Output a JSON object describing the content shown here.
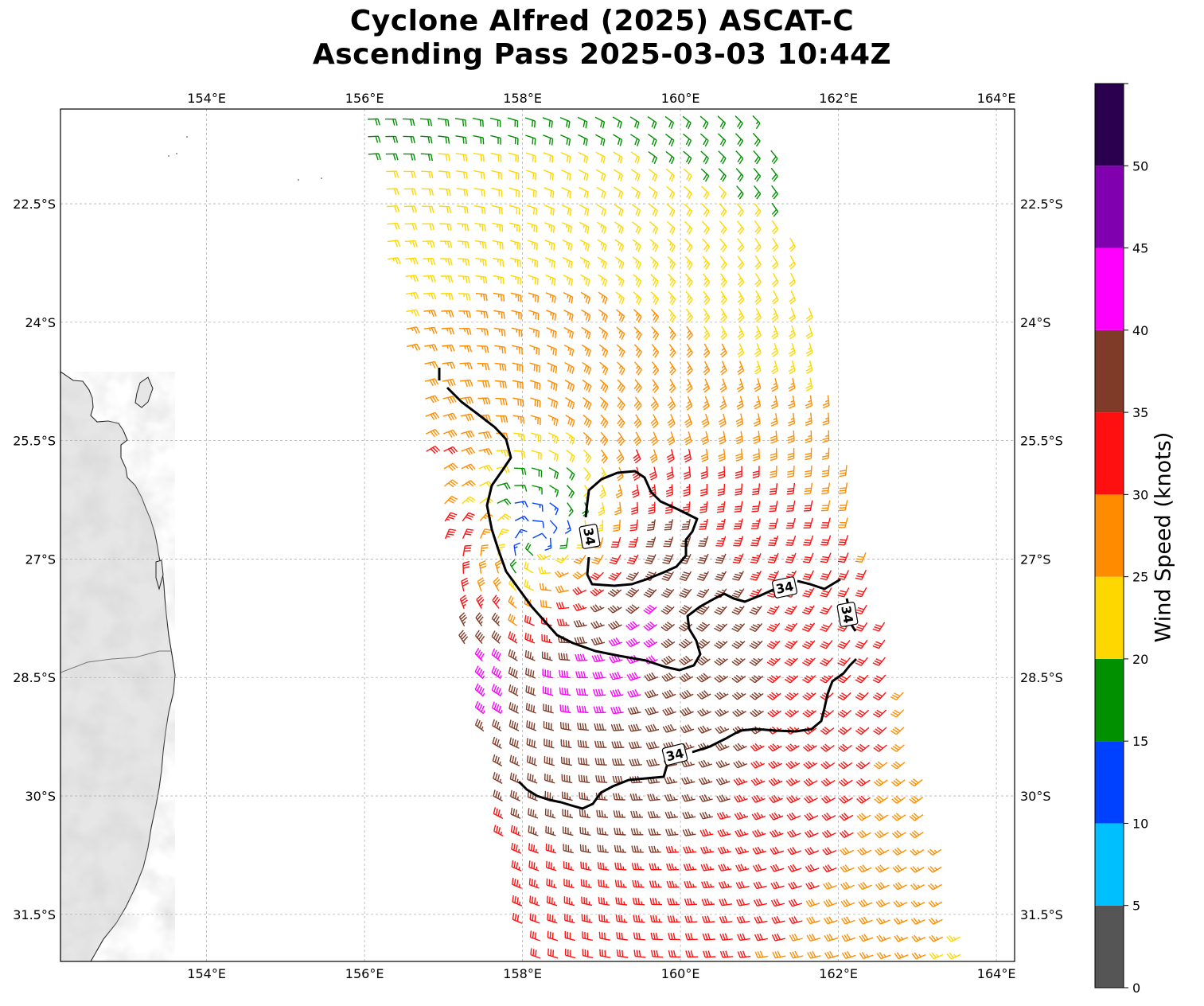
{
  "title": {
    "line1": "Cyclone Alfred (2025) ASCAT-C",
    "line2": "Ascending Pass 2025-03-03 10:44Z"
  },
  "map": {
    "lon_ticks": [
      "154°E",
      "156°E",
      "158°E",
      "160°E",
      "162°E",
      "164°E"
    ],
    "lat_ticks": [
      "22.5°S",
      "24°S",
      "25.5°S",
      "27°S",
      "28.5°S",
      "30°S",
      "31.5°S"
    ],
    "contour_value": "34",
    "contour_labels": [
      "34",
      "34",
      "34",
      "34"
    ]
  },
  "colorbar": {
    "label": "Wind Speed (knots)",
    "ticks": [
      "0",
      "5",
      "10",
      "15",
      "20",
      "25",
      "30",
      "35",
      "40",
      "45",
      "50"
    ],
    "bins": [
      {
        "min": 0,
        "max": 5,
        "color": "#555555"
      },
      {
        "min": 5,
        "max": 10,
        "color": "#00bfff"
      },
      {
        "min": 10,
        "max": 15,
        "color": "#0040ff"
      },
      {
        "min": 15,
        "max": 20,
        "color": "#009000"
      },
      {
        "min": 20,
        "max": 25,
        "color": "#ffd700"
      },
      {
        "min": 25,
        "max": 30,
        "color": "#ff8c00"
      },
      {
        "min": 30,
        "max": 35,
        "color": "#ff1010"
      },
      {
        "min": 35,
        "max": 40,
        "color": "#803b28"
      },
      {
        "min": 40,
        "max": 45,
        "color": "#ff00ff"
      },
      {
        "min": 45,
        "max": 50,
        "color": "#8000b0"
      },
      {
        "min": 50,
        "max": 55,
        "color": "#2a004f"
      }
    ]
  },
  "storm_center": {
    "lon": 158.2,
    "lat": -26.8
  }
}
